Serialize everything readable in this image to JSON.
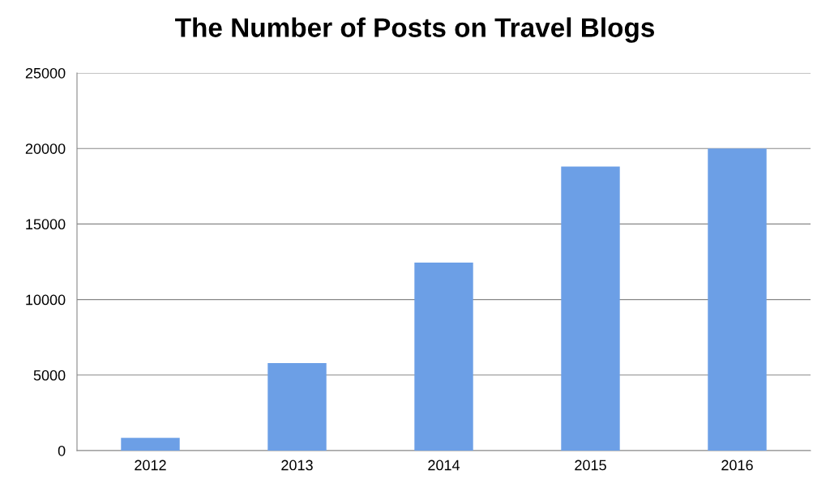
{
  "chart_data": {
    "type": "bar",
    "title": "The Number of Posts on Travel Blogs",
    "categories": [
      "2012",
      "2013",
      "2014",
      "2015",
      "2016"
    ],
    "values": [
      850,
      5800,
      12450,
      18800,
      20000
    ],
    "color": "#6c9fe6",
    "ylim": [
      0,
      25000
    ],
    "yticks": [
      0,
      5000,
      10000,
      15000,
      20000,
      25000
    ],
    "grid": "y"
  }
}
